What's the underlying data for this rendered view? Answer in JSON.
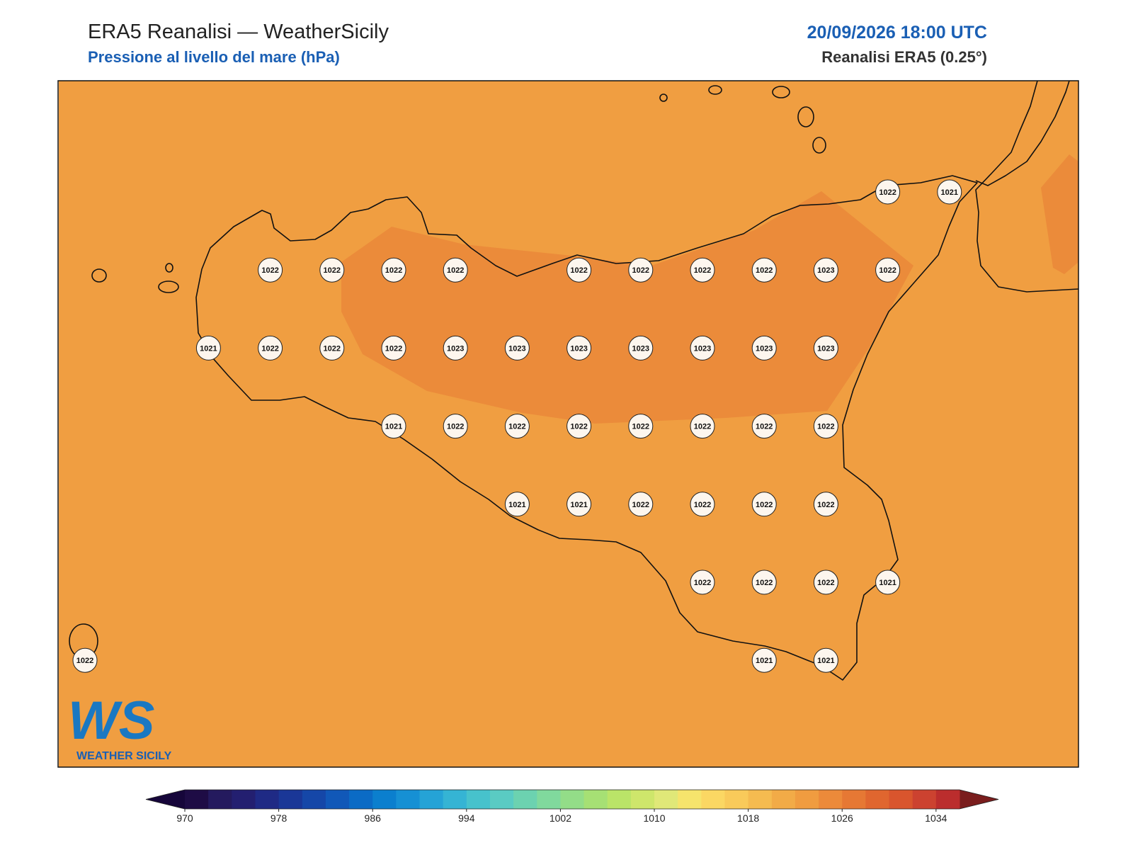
{
  "header": {
    "title": "ERA5 Reanalisi — WeatherSicily",
    "subtitle": "Pressione al livello del mare (hPa)",
    "datetime": "20/09/2026 18:00 UTC",
    "source": "Reanalisi ERA5 (0.25°)"
  },
  "stations": {
    "rows": [
      [
        null,
        null,
        null,
        null,
        null,
        null,
        null,
        null,
        null,
        null,
        null,
        null,
        null,
        1022,
        1021
      ],
      [
        null,
        null,
        null,
        1022,
        1022,
        1022,
        1022,
        null,
        1022,
        1022,
        1022,
        1022,
        1023,
        1022,
        null
      ],
      [
        null,
        null,
        1021,
        1022,
        1022,
        1022,
        1023,
        1023,
        1023,
        1023,
        1023,
        1023,
        1023,
        null,
        null
      ],
      [
        null,
        null,
        null,
        null,
        null,
        1021,
        1022,
        1022,
        1022,
        1022,
        1022,
        1022,
        1022,
        null,
        null
      ],
      [
        null,
        null,
        null,
        null,
        null,
        null,
        null,
        1021,
        1021,
        1022,
        1022,
        1022,
        1022,
        null,
        null
      ],
      [
        null,
        null,
        null,
        null,
        null,
        null,
        null,
        null,
        null,
        null,
        1022,
        1022,
        1022,
        1021,
        null
      ],
      [
        1022,
        null,
        null,
        null,
        null,
        null,
        null,
        null,
        null,
        null,
        null,
        1021,
        1021,
        null,
        null
      ]
    ]
  },
  "colorbar": {
    "range": [
      970,
      1036
    ],
    "ticks": [
      970,
      978,
      986,
      994,
      1002,
      1010,
      1018,
      1026,
      1034
    ],
    "under": "#16063a",
    "over": "#7a1d1d",
    "colors": [
      "#1e0c45",
      "#241a5e",
      "#231f70",
      "#1f2a85",
      "#1a3797",
      "#1547a8",
      "#1158b8",
      "#0b6bc5",
      "#0b7fce",
      "#1690d4",
      "#25a3d6",
      "#35b4d4",
      "#47c2cc",
      "#5acbc3",
      "#6cd2b0",
      "#80d99d",
      "#93dd88",
      "#a6e074",
      "#bae468",
      "#cee66b",
      "#e0e878",
      "#f6e46c",
      "#fbd763",
      "#f9ca5a",
      "#f5bb50",
      "#f2ab47",
      "#f09c40",
      "#ec8a3a",
      "#e67834",
      "#e0662f",
      "#d9552d",
      "#cc4230",
      "#bb2d2d"
    ]
  },
  "logo": {
    "mark": "WS",
    "text": "WEATHER SICILY"
  }
}
